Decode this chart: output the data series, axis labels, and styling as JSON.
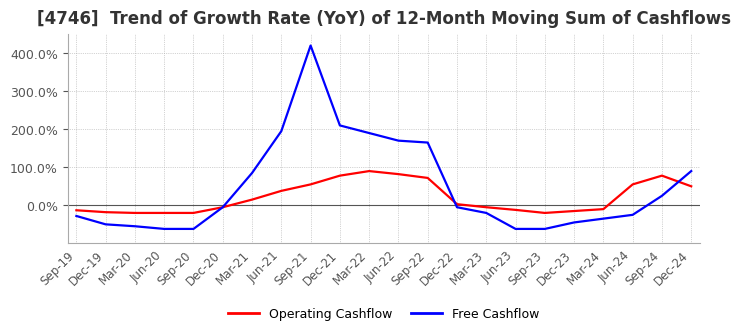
{
  "title": "[4746]  Trend of Growth Rate (YoY) of 12-Month Moving Sum of Cashflows",
  "title_fontsize": 12,
  "title_color": "#333333",
  "background_color": "#ffffff",
  "grid_color": "#aaaaaa",
  "x_labels": [
    "Sep-19",
    "Dec-19",
    "Mar-20",
    "Jun-20",
    "Sep-20",
    "Dec-20",
    "Mar-21",
    "Jun-21",
    "Sep-21",
    "Dec-21",
    "Mar-22",
    "Jun-22",
    "Sep-22",
    "Dec-22",
    "Mar-23",
    "Jun-23",
    "Sep-23",
    "Dec-23",
    "Mar-24",
    "Jun-24",
    "Sep-24",
    "Dec-24"
  ],
  "operating_cashflow": [
    -13,
    -18,
    -20,
    -20,
    -20,
    -5,
    15,
    38,
    55,
    78,
    90,
    82,
    72,
    3,
    -5,
    -12,
    -20,
    -15,
    -10,
    55,
    78,
    50
  ],
  "free_cashflow": [
    -28,
    -50,
    -55,
    -62,
    -62,
    -5,
    85,
    195,
    420,
    210,
    190,
    170,
    165,
    -5,
    -20,
    -62,
    -62,
    -45,
    -35,
    -25,
    25,
    90
  ],
  "operating_color": "#ff0000",
  "free_color": "#0000ff",
  "ylim_min": -100,
  "ylim_max": 450,
  "ytick_values": [
    0,
    100,
    200,
    300,
    400
  ],
  "legend_labels": [
    "Operating Cashflow",
    "Free Cashflow"
  ],
  "line_width": 1.6
}
